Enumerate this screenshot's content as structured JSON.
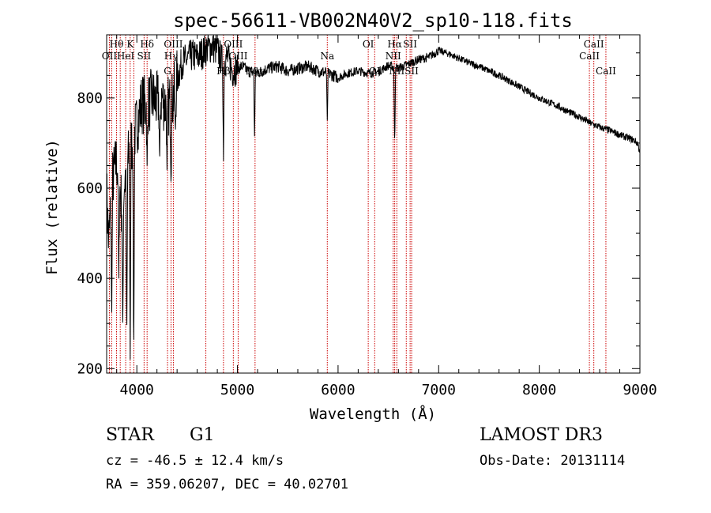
{
  "chart_data": {
    "type": "line",
    "title": "spec-56611-VB002N40V2_sp10-118.fits",
    "xlabel": "Wavelength (Å)",
    "ylabel": "Flux (relative)",
    "xlim": [
      3700,
      9000
    ],
    "ylim": [
      190,
      940
    ],
    "x_ticks": [
      4000,
      5000,
      6000,
      7000,
      8000,
      9000
    ],
    "y_ticks": [
      200,
      400,
      600,
      800
    ],
    "continuum": [
      [
        3700,
        590
      ],
      [
        3720,
        480
      ],
      [
        3760,
        620
      ],
      [
        3800,
        660
      ],
      [
        3850,
        560
      ],
      [
        3900,
        650
      ],
      [
        3950,
        700
      ],
      [
        4000,
        740
      ],
      [
        4050,
        790
      ],
      [
        4100,
        780
      ],
      [
        4150,
        800
      ],
      [
        4200,
        790
      ],
      [
        4250,
        800
      ],
      [
        4300,
        780
      ],
      [
        4350,
        790
      ],
      [
        4400,
        840
      ],
      [
        4450,
        880
      ],
      [
        4500,
        885
      ],
      [
        4550,
        895
      ],
      [
        4600,
        890
      ],
      [
        4650,
        900
      ],
      [
        4700,
        910
      ],
      [
        4750,
        915
      ],
      [
        4800,
        905
      ],
      [
        4850,
        880
      ],
      [
        4900,
        890
      ],
      [
        4950,
        860
      ],
      [
        5000,
        865
      ],
      [
        5050,
        870
      ],
      [
        5100,
        860
      ],
      [
        5200,
        855
      ],
      [
        5300,
        865
      ],
      [
        5400,
        870
      ],
      [
        5500,
        860
      ],
      [
        5600,
        865
      ],
      [
        5700,
        870
      ],
      [
        5800,
        860
      ],
      [
        5900,
        855
      ],
      [
        6000,
        845
      ],
      [
        6100,
        855
      ],
      [
        6200,
        860
      ],
      [
        6300,
        855
      ],
      [
        6400,
        858
      ],
      [
        6500,
        872
      ],
      [
        6600,
        866
      ],
      [
        6700,
        875
      ],
      [
        6800,
        885
      ],
      [
        6900,
        890
      ],
      [
        7000,
        905
      ],
      [
        7100,
        898
      ],
      [
        7200,
        888
      ],
      [
        7300,
        878
      ],
      [
        7400,
        870
      ],
      [
        7500,
        860
      ],
      [
        7600,
        850
      ],
      [
        7700,
        838
      ],
      [
        7800,
        825
      ],
      [
        7900,
        812
      ],
      [
        8000,
        800
      ],
      [
        8100,
        790
      ],
      [
        8200,
        780
      ],
      [
        8300,
        768
      ],
      [
        8400,
        758
      ],
      [
        8500,
        745
      ],
      [
        8600,
        735
      ],
      [
        8700,
        728
      ],
      [
        8800,
        718
      ],
      [
        8900,
        710
      ],
      [
        8950,
        705
      ],
      [
        8980,
        698
      ],
      [
        9000,
        680
      ]
    ],
    "absorption_features": [
      [
        3750,
        300
      ],
      [
        3820,
        400
      ],
      [
        3860,
        260
      ],
      [
        3900,
        250
      ],
      [
        3934,
        220
      ],
      [
        3969,
        205
      ],
      [
        4102,
        650
      ],
      [
        4227,
        650
      ],
      [
        4300,
        640
      ],
      [
        4340,
        600
      ],
      [
        4383,
        720
      ],
      [
        4861,
        660
      ],
      [
        5170,
        715
      ],
      [
        5893,
        750
      ],
      [
        6563,
        690
      ]
    ],
    "line_markers": [
      {
        "label": "Hθ",
        "wavelength": 3798,
        "row": 0
      },
      {
        "label": "K",
        "wavelength": 3934,
        "row": 0
      },
      {
        "label": "Hδ",
        "wavelength": 4102,
        "row": 0
      },
      {
        "label": "OII",
        "wavelength": 3727,
        "row": 1
      },
      {
        "label": "HeI",
        "wavelength": 3889,
        "row": 1
      },
      {
        "label": "SII",
        "wavelength": 4072,
        "row": 1
      },
      {
        "label": "OIII",
        "wavelength": 4363,
        "row": 0
      },
      {
        "label": "Hγ",
        "wavelength": 4340,
        "row": 1
      },
      {
        "label": "G",
        "wavelength": 4305,
        "row": 2
      },
      {
        "label": "OIII",
        "wavelength": 4959,
        "row": 0
      },
      {
        "label": "OIII",
        "wavelength": 5007,
        "row": 1
      },
      {
        "label": "Hβ",
        "wavelength": 4861,
        "row": 2
      },
      {
        "label": "Mg",
        "wavelength": 5175,
        "row": 2
      },
      {
        "label": "Na",
        "wavelength": 5893,
        "row": 1
      },
      {
        "label": "OI",
        "wavelength": 6300,
        "row": 0
      },
      {
        "label": "OI",
        "wavelength": 6364,
        "row": 2
      },
      {
        "label": "Hα",
        "wavelength": 6563,
        "row": 0
      },
      {
        "label": "SII",
        "wavelength": 6716,
        "row": 0
      },
      {
        "label": "NII",
        "wavelength": 6548,
        "row": 1
      },
      {
        "label": "NII",
        "wavelength": 6584,
        "row": 2
      },
      {
        "label": "SII",
        "wavelength": 6731,
        "row": 2
      },
      {
        "label": "CaII",
        "wavelength": 8542,
        "row": 0
      },
      {
        "label": "CaII",
        "wavelength": 8498,
        "row": 1
      },
      {
        "label": "CaII",
        "wavelength": 8662,
        "row": 2
      }
    ],
    "extra_marker_lines": [
      3750,
      3835,
      3970,
      4686,
      6678
    ]
  },
  "colors": {
    "marker": "#cc0000",
    "spectrum": "#000000"
  },
  "info": {
    "class_label": "STAR",
    "subclass": "G1",
    "cz_line": "cz = -46.5 ± 12.4 km/s",
    "coords_line": "RA = 359.06207, DEC =  40.02701",
    "survey": "LAMOST DR3",
    "obs_date": "Obs-Date: 20131114"
  }
}
